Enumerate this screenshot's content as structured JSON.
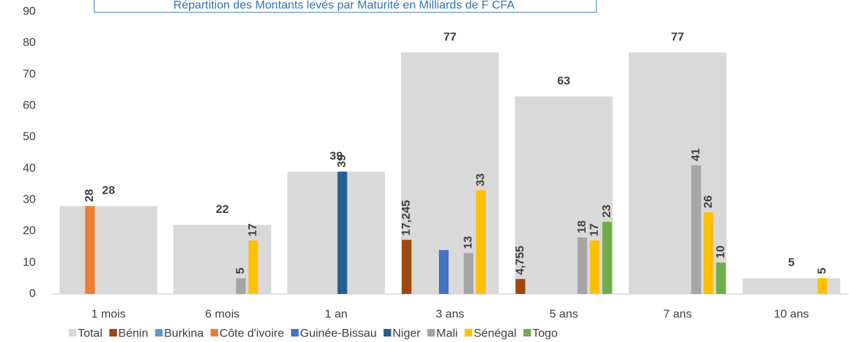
{
  "chart_data": {
    "type": "bar",
    "title": "Répartition des Montants levés par Maturité en Milliards de F CFA",
    "categories": [
      "1 mois",
      "6 mois",
      "1 an",
      "3 ans",
      "5 ans",
      "7 ans",
      "10 ans"
    ],
    "series": [
      {
        "name": "Total",
        "color": "#d9d9d9",
        "values": [
          28,
          22,
          39,
          77,
          63,
          77,
          5
        ]
      },
      {
        "name": "Bénin",
        "color": "#9e480e",
        "values": [
          null,
          null,
          null,
          17.245,
          4.755,
          null,
          null
        ],
        "value_labels": [
          null,
          null,
          null,
          "17,245",
          "4,755",
          null,
          null
        ]
      },
      {
        "name": "Burkina",
        "color": "#5b9bd5",
        "values": [
          null,
          null,
          null,
          null,
          null,
          null,
          null
        ]
      },
      {
        "name": "Côte d'ivoire",
        "color": "#ed7d31",
        "values": [
          28,
          null,
          null,
          null,
          null,
          null,
          null
        ]
      },
      {
        "name": "Guinée-Bissau",
        "color": "#4472c4",
        "values": [
          null,
          null,
          null,
          14,
          null,
          null,
          null
        ],
        "value_labels": [
          null,
          null,
          null,
          null,
          null,
          null,
          null
        ]
      },
      {
        "name": "Niger",
        "color": "#255e91",
        "values": [
          null,
          null,
          39,
          null,
          null,
          null,
          null
        ]
      },
      {
        "name": "Mali",
        "color": "#a5a5a5",
        "values": [
          null,
          5,
          null,
          13,
          18,
          41,
          null
        ]
      },
      {
        "name": "Sénégal",
        "color": "#ffc000",
        "values": [
          null,
          17,
          null,
          33,
          17,
          26,
          5
        ]
      },
      {
        "name": "Togo",
        "color": "#70ad47",
        "values": [
          null,
          null,
          null,
          null,
          23,
          10,
          null
        ]
      }
    ],
    "ylim": [
      0,
      90
    ],
    "yticks": [
      0,
      10,
      20,
      30,
      40,
      50,
      60,
      70,
      80,
      90
    ],
    "grid": false,
    "legend": "bottom"
  }
}
